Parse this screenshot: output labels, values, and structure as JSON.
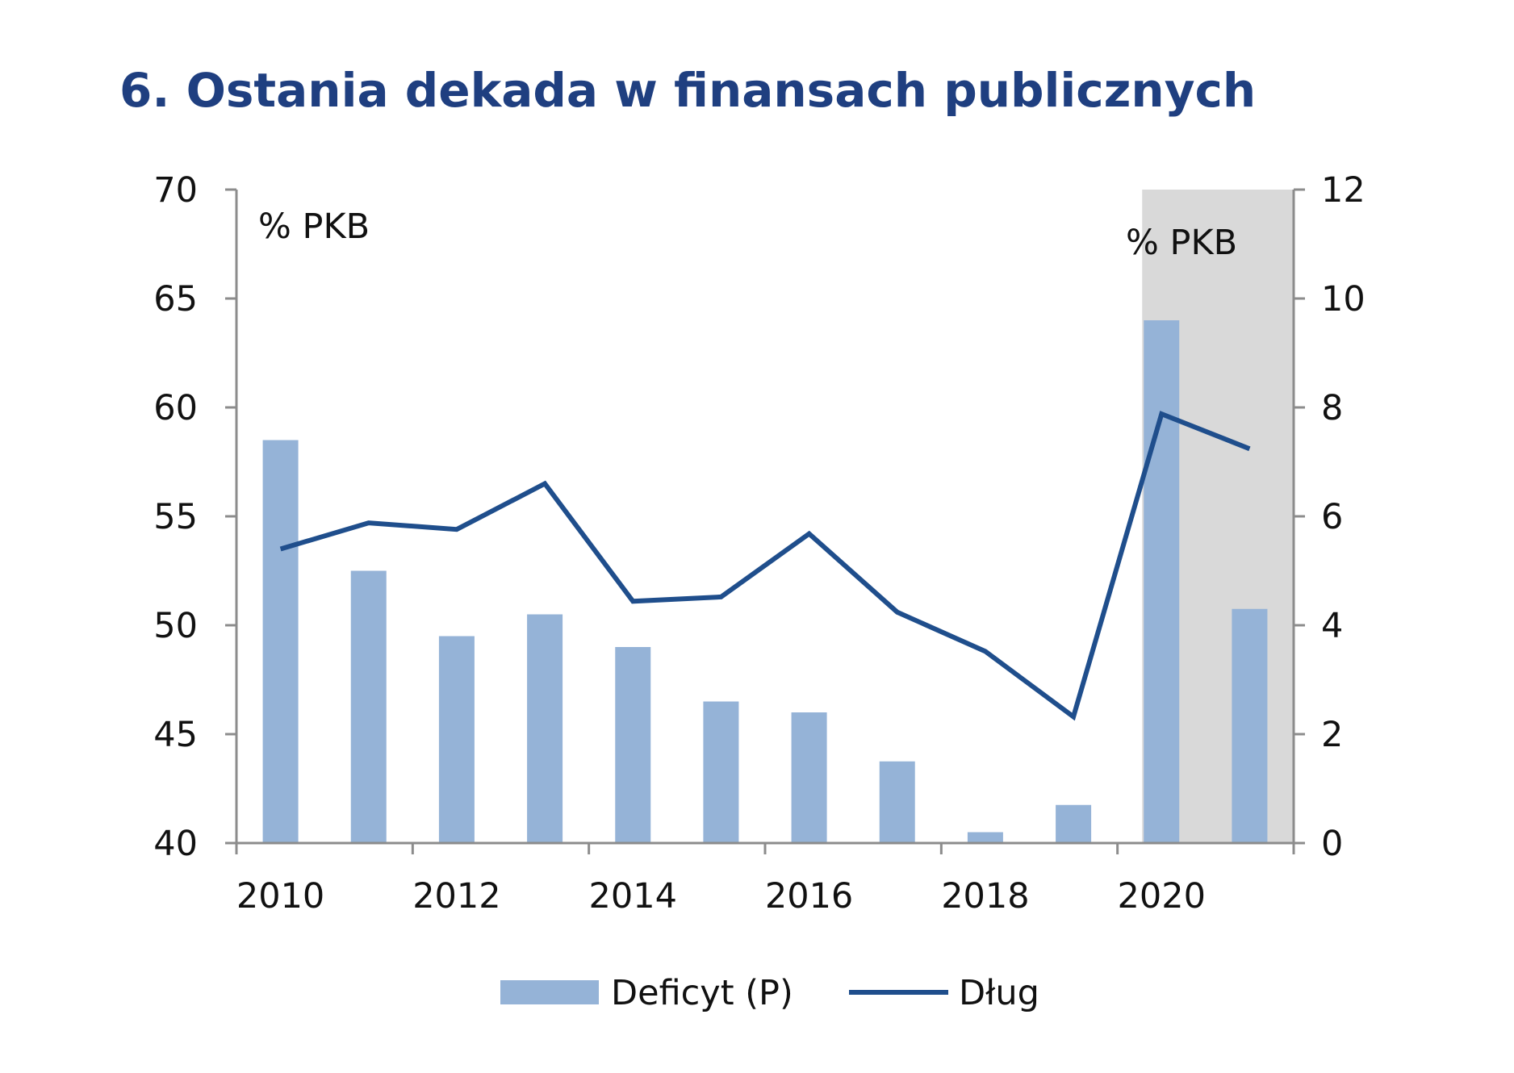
{
  "chart_data": {
    "type": "bar+line",
    "title": "6. Ostania dekada w finansach publicznych",
    "x": [
      2010,
      2011,
      2012,
      2013,
      2014,
      2015,
      2016,
      2017,
      2018,
      2019,
      2020,
      2021
    ],
    "x_tick_labels": [
      "2010",
      "2012",
      "2014",
      "2016",
      "2018",
      "2020"
    ],
    "left_axis": {
      "unit_label": "% PKB",
      "ylim": [
        40,
        70
      ],
      "ticks": [
        "40",
        "45",
        "50",
        "55",
        "60",
        "65",
        "70"
      ]
    },
    "right_axis": {
      "unit_label": "% PKB",
      "ylim": [
        0,
        12
      ],
      "ticks": [
        "0",
        "2",
        "4",
        "6",
        "8",
        "10",
        "12"
      ]
    },
    "series": [
      {
        "name": "Deficyt (P)",
        "type": "bar",
        "axis": "right",
        "color": "#95b3d7",
        "values": [
          7.4,
          5.0,
          3.8,
          4.2,
          3.6,
          2.6,
          2.4,
          1.5,
          0.2,
          0.7,
          9.6,
          4.3
        ]
      },
      {
        "name": "Dług",
        "type": "line",
        "axis": "left",
        "color": "#1f4e8c",
        "values": [
          53.5,
          54.7,
          54.4,
          56.5,
          51.1,
          51.3,
          54.2,
          50.6,
          48.8,
          45.8,
          59.7,
          58.1
        ]
      }
    ],
    "shaded_region": {
      "from": 2020,
      "to": 2021,
      "color": "#d9d9d9"
    },
    "legend": {
      "placement": "bottom-center"
    },
    "grid": false
  }
}
